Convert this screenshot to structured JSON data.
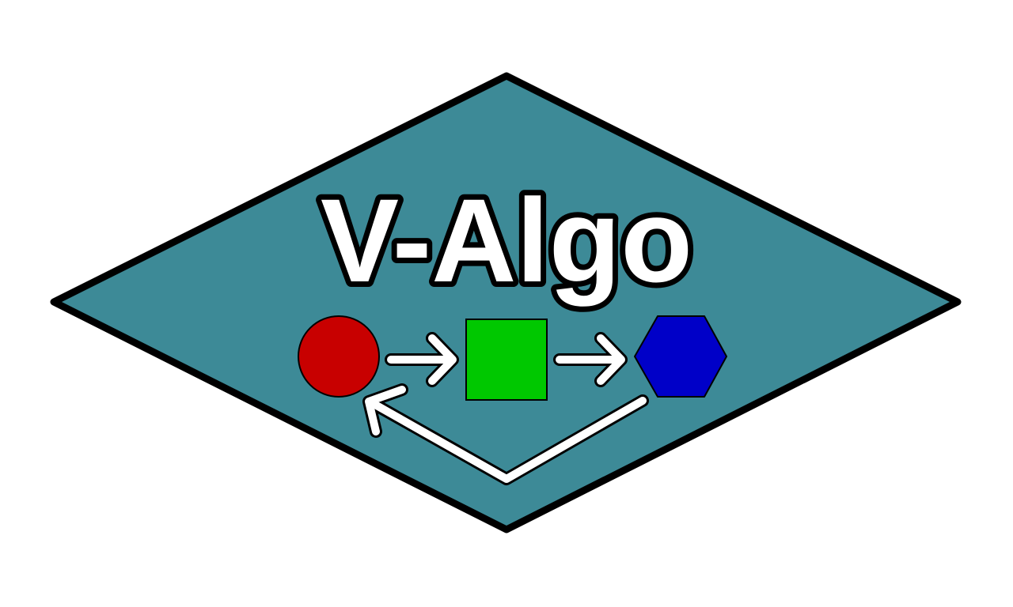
{
  "logo": {
    "title": "V-Algo"
  },
  "colors": {
    "background": "#ffffff",
    "diamond_fill": "#3d8a97",
    "outline": "#000000",
    "title_fill": "#ffffff",
    "circle_fill": "#c80000",
    "square_fill": "#00c800",
    "hexagon_fill": "#0000c8",
    "arrow_fill": "#ffffff"
  },
  "flow": {
    "nodes": [
      {
        "shape": "circle",
        "icon": "red-circle-icon"
      },
      {
        "shape": "square",
        "icon": "green-square-icon"
      },
      {
        "shape": "hexagon",
        "icon": "blue-hexagon-icon"
      }
    ],
    "arrows": [
      "circle-to-square-arrow",
      "square-to-hexagon-arrow",
      "hexagon-to-circle-return-arrow"
    ]
  }
}
